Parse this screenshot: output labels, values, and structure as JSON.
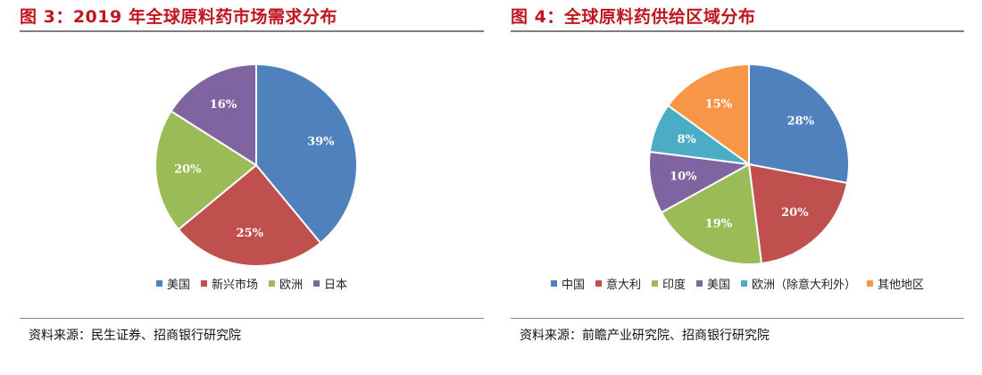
{
  "charts": [
    {
      "title": "图 3：2019 年全球原料药市场需求分布",
      "source": "资料来源：民生证券、招商银行研究院",
      "chart_data": {
        "type": "pie",
        "categories": [
          "美国",
          "新兴市场",
          "欧洲",
          "日本"
        ],
        "values": [
          39,
          25,
          20,
          16
        ],
        "value_labels": [
          "39%",
          "25%",
          "20%",
          "16%"
        ],
        "colors": [
          "#4f81bd",
          "#c0504d",
          "#9bbb59",
          "#8064a2"
        ],
        "legend_position": "bottom"
      }
    },
    {
      "title": "图 4：全球原料药供给区域分布",
      "source": "资料来源：前瞻产业研究院、招商银行研究院",
      "chart_data": {
        "type": "pie",
        "categories": [
          "中国",
          "意大利",
          "印度",
          "美国",
          "欧洲（除意大利外）",
          "其他地区"
        ],
        "values": [
          28,
          20,
          19,
          10,
          8,
          15
        ],
        "value_labels": [
          "28%",
          "20%",
          "19%",
          "10%",
          "8%",
          "15%"
        ],
        "colors": [
          "#4f81bd",
          "#c0504d",
          "#9bbb59",
          "#8064a2",
          "#4bacc6",
          "#f79646"
        ],
        "legend_position": "bottom"
      }
    }
  ]
}
